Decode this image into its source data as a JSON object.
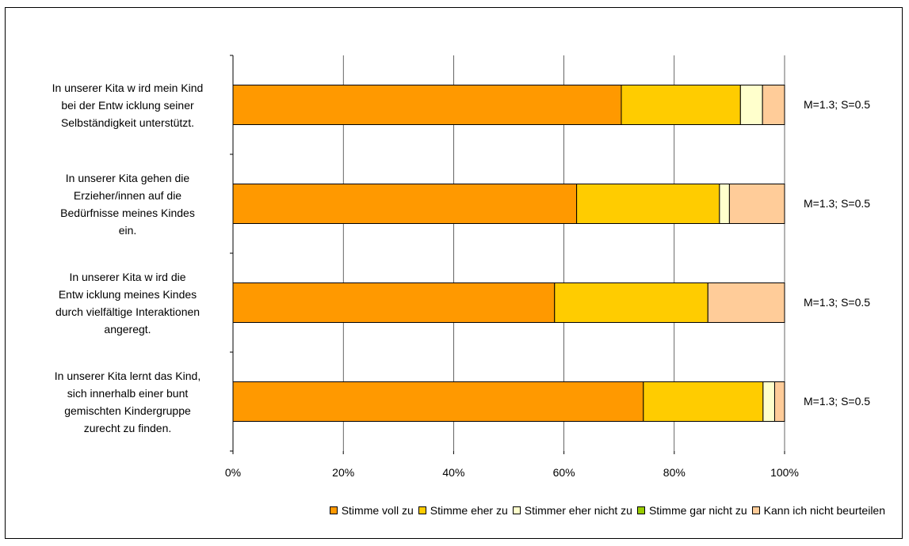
{
  "chart_data": {
    "type": "bar",
    "orientation": "horizontal",
    "stacked": "percent",
    "categories": [
      "In unserer Kita w ird mein Kind\nbei der Entw icklung seiner\nSelbständigkeit unterstützt.",
      "In unserer Kita gehen die\nErzieher/innen auf die\nBedürfnisse meines Kindes\nein.",
      "In unserer Kita w ird die\nEntw icklung meines Kindes\ndurch vielfältige Interaktionen\nangeregt.",
      "In unserer Kita lernt das Kind,\nsich innerhalb einer bunt\ngemischten Kindergruppe\nzurecht zu finden."
    ],
    "stats": [
      "M=1.3; S=0.5",
      "M=1.3; S=0.5",
      "M=1.3; S=0.5",
      "M=1.3; S=0.5"
    ],
    "series": [
      {
        "name": "Stimme voll zu",
        "color": "#FF9900",
        "values": [
          70.4,
          62.3,
          58.3,
          74.4
        ]
      },
      {
        "name": "Stimme eher zu",
        "color": "#FFCC00",
        "values": [
          21.6,
          25.9,
          27.8,
          21.7
        ]
      },
      {
        "name": "Stimmer eher nicht zu",
        "color": "#FFFFCC",
        "values": [
          4.0,
          1.8,
          0.0,
          2.1
        ]
      },
      {
        "name": "Stimme gar nicht zu",
        "color": "#99CC00",
        "values": [
          0.0,
          0.0,
          0.0,
          0.0
        ]
      },
      {
        "name": "Kann ich nicht beurteilen",
        "color": "#FFCC99",
        "values": [
          4.0,
          10.0,
          13.9,
          1.8
        ]
      }
    ],
    "xticks": [
      "0%",
      "20%",
      "40%",
      "60%",
      "80%",
      "100%"
    ],
    "xlim": [
      0,
      100
    ],
    "grid": true,
    "legend_position": "bottom"
  }
}
